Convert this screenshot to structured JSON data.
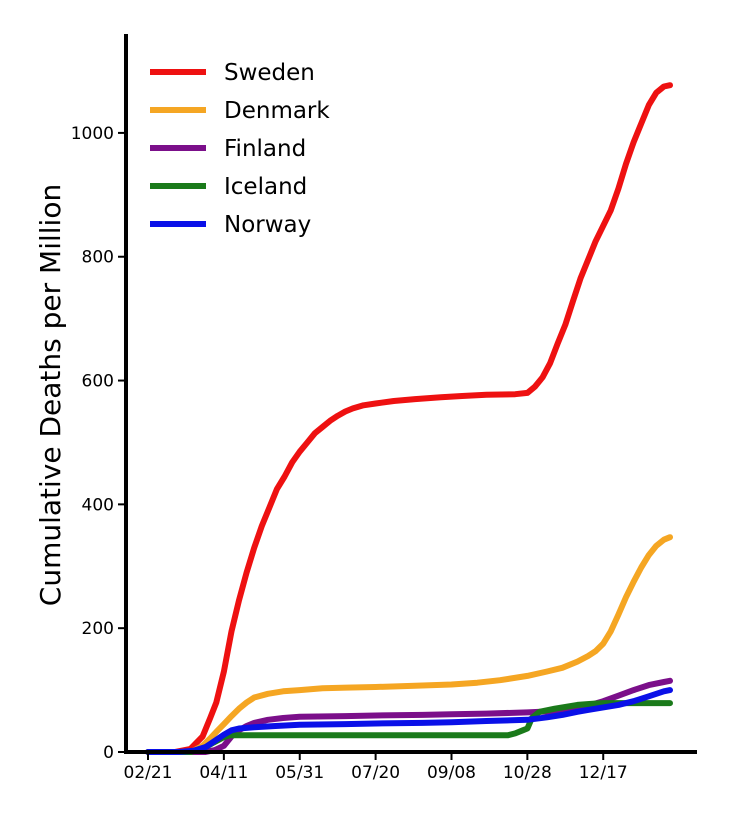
{
  "chart_data": {
    "type": "line",
    "title": "",
    "xlabel": "",
    "ylabel": "Cumulative Deaths per Million",
    "x_domain": [
      "2020-02-21",
      "2021-01-30"
    ],
    "ylim": [
      0,
      1100
    ],
    "x_ticks": [
      {
        "date": "2020-02-21",
        "label": "02/21"
      },
      {
        "date": "2020-04-11",
        "label": "04/11"
      },
      {
        "date": "2020-05-31",
        "label": "05/31"
      },
      {
        "date": "2020-07-20",
        "label": "07/20"
      },
      {
        "date": "2020-09-08",
        "label": "09/08"
      },
      {
        "date": "2020-10-28",
        "label": "10/28"
      },
      {
        "date": "2020-12-17",
        "label": "12/17"
      }
    ],
    "y_ticks": [
      0,
      200,
      400,
      600,
      800,
      1000
    ],
    "grid": false,
    "legend_position": "top-left",
    "series": [
      {
        "name": "Sweden",
        "color": "#ee1111",
        "points": [
          [
            "2020-02-21",
            0
          ],
          [
            "2020-03-10",
            0
          ],
          [
            "2020-03-20",
            5
          ],
          [
            "2020-03-28",
            25
          ],
          [
            "2020-04-02",
            55
          ],
          [
            "2020-04-06",
            80
          ],
          [
            "2020-04-11",
            130
          ],
          [
            "2020-04-16",
            195
          ],
          [
            "2020-04-21",
            245
          ],
          [
            "2020-04-26",
            290
          ],
          [
            "2020-05-01",
            330
          ],
          [
            "2020-05-06",
            365
          ],
          [
            "2020-05-11",
            395
          ],
          [
            "2020-05-16",
            425
          ],
          [
            "2020-05-21",
            445
          ],
          [
            "2020-05-26",
            468
          ],
          [
            "2020-05-31",
            485
          ],
          [
            "2020-06-05",
            500
          ],
          [
            "2020-06-10",
            515
          ],
          [
            "2020-06-15",
            525
          ],
          [
            "2020-06-20",
            535
          ],
          [
            "2020-06-25",
            543
          ],
          [
            "2020-06-30",
            550
          ],
          [
            "2020-07-05",
            555
          ],
          [
            "2020-07-12",
            560
          ],
          [
            "2020-07-20",
            563
          ],
          [
            "2020-08-01",
            567
          ],
          [
            "2020-08-15",
            570
          ],
          [
            "2020-09-01",
            573
          ],
          [
            "2020-09-15",
            575
          ],
          [
            "2020-10-01",
            577
          ],
          [
            "2020-10-20",
            578
          ],
          [
            "2020-10-28",
            580
          ],
          [
            "2020-11-02",
            590
          ],
          [
            "2020-11-07",
            605
          ],
          [
            "2020-11-12",
            628
          ],
          [
            "2020-11-17",
            660
          ],
          [
            "2020-11-22",
            690
          ],
          [
            "2020-11-27",
            728
          ],
          [
            "2020-12-02",
            765
          ],
          [
            "2020-12-07",
            795
          ],
          [
            "2020-12-12",
            825
          ],
          [
            "2020-12-17",
            850
          ],
          [
            "2020-12-22",
            875
          ],
          [
            "2020-12-27",
            910
          ],
          [
            "2021-01-01",
            950
          ],
          [
            "2021-01-06",
            985
          ],
          [
            "2021-01-11",
            1015
          ],
          [
            "2021-01-16",
            1045
          ],
          [
            "2021-01-21",
            1065
          ],
          [
            "2021-01-26",
            1075
          ],
          [
            "2021-01-30",
            1077
          ]
        ]
      },
      {
        "name": "Denmark",
        "color": "#f5a623",
        "points": [
          [
            "2020-02-21",
            0
          ],
          [
            "2020-03-14",
            0
          ],
          [
            "2020-03-22",
            2
          ],
          [
            "2020-03-28",
            10
          ],
          [
            "2020-04-02",
            22
          ],
          [
            "2020-04-07",
            35
          ],
          [
            "2020-04-11",
            45
          ],
          [
            "2020-04-16",
            58
          ],
          [
            "2020-04-21",
            70
          ],
          [
            "2020-04-26",
            80
          ],
          [
            "2020-05-01",
            88
          ],
          [
            "2020-05-10",
            94
          ],
          [
            "2020-05-20",
            98
          ],
          [
            "2020-05-31",
            100
          ],
          [
            "2020-06-15",
            103
          ],
          [
            "2020-07-01",
            104
          ],
          [
            "2020-07-20",
            105
          ],
          [
            "2020-08-15",
            107
          ],
          [
            "2020-09-08",
            109
          ],
          [
            "2020-09-25",
            112
          ],
          [
            "2020-10-10",
            116
          ],
          [
            "2020-10-28",
            123
          ],
          [
            "2020-11-10",
            130
          ],
          [
            "2020-11-20",
            136
          ],
          [
            "2020-11-30",
            146
          ],
          [
            "2020-12-07",
            155
          ],
          [
            "2020-12-12",
            163
          ],
          [
            "2020-12-17",
            175
          ],
          [
            "2020-12-22",
            195
          ],
          [
            "2020-12-27",
            222
          ],
          [
            "2021-01-01",
            250
          ],
          [
            "2021-01-06",
            275
          ],
          [
            "2021-01-11",
            298
          ],
          [
            "2021-01-16",
            318
          ],
          [
            "2021-01-21",
            333
          ],
          [
            "2021-01-26",
            343
          ],
          [
            "2021-01-30",
            347
          ]
        ]
      },
      {
        "name": "Finland",
        "color": "#7b0f8a",
        "points": [
          [
            "2020-02-21",
            0
          ],
          [
            "2020-03-30",
            0
          ],
          [
            "2020-04-05",
            3
          ],
          [
            "2020-04-11",
            10
          ],
          [
            "2020-04-16",
            25
          ],
          [
            "2020-04-21",
            35
          ],
          [
            "2020-04-26",
            42
          ],
          [
            "2020-05-01",
            47
          ],
          [
            "2020-05-10",
            52
          ],
          [
            "2020-05-20",
            55
          ],
          [
            "2020-05-31",
            57
          ],
          [
            "2020-06-30",
            58
          ],
          [
            "2020-07-20",
            59
          ],
          [
            "2020-08-20",
            60
          ],
          [
            "2020-09-08",
            61
          ],
          [
            "2020-10-01",
            62
          ],
          [
            "2020-10-28",
            64
          ],
          [
            "2020-11-15",
            66
          ],
          [
            "2020-11-30",
            70
          ],
          [
            "2020-12-07",
            75
          ],
          [
            "2020-12-17",
            82
          ],
          [
            "2020-12-27",
            91
          ],
          [
            "2021-01-06",
            100
          ],
          [
            "2021-01-16",
            108
          ],
          [
            "2021-01-26",
            113
          ],
          [
            "2021-01-30",
            115
          ]
        ]
      },
      {
        "name": "Iceland",
        "color": "#1a7a1a",
        "points": [
          [
            "2020-02-21",
            0
          ],
          [
            "2020-03-20",
            0
          ],
          [
            "2020-03-28",
            5
          ],
          [
            "2020-04-04",
            15
          ],
          [
            "2020-04-11",
            24
          ],
          [
            "2020-04-15",
            27
          ],
          [
            "2020-06-30",
            27
          ],
          [
            "2020-09-08",
            27
          ],
          [
            "2020-10-15",
            27
          ],
          [
            "2020-10-20",
            30
          ],
          [
            "2020-10-25",
            35
          ],
          [
            "2020-10-28",
            38
          ],
          [
            "2020-10-31",
            55
          ],
          [
            "2020-11-05",
            65
          ],
          [
            "2020-11-15",
            70
          ],
          [
            "2020-11-30",
            76
          ],
          [
            "2020-12-10",
            78
          ],
          [
            "2020-12-17",
            79
          ],
          [
            "2021-01-30",
            79
          ]
        ]
      },
      {
        "name": "Norway",
        "color": "#0a10e8",
        "points": [
          [
            "2020-02-21",
            0
          ],
          [
            "2020-03-12",
            0
          ],
          [
            "2020-03-22",
            2
          ],
          [
            "2020-03-30",
            8
          ],
          [
            "2020-04-05",
            18
          ],
          [
            "2020-04-11",
            28
          ],
          [
            "2020-04-16",
            35
          ],
          [
            "2020-04-21",
            38
          ],
          [
            "2020-05-01",
            40
          ],
          [
            "2020-05-15",
            42
          ],
          [
            "2020-05-31",
            44
          ],
          [
            "2020-06-30",
            45
          ],
          [
            "2020-07-20",
            46
          ],
          [
            "2020-08-20",
            47
          ],
          [
            "2020-09-08",
            48
          ],
          [
            "2020-10-01",
            50
          ],
          [
            "2020-10-28",
            52
          ],
          [
            "2020-11-10",
            56
          ],
          [
            "2020-11-20",
            60
          ],
          [
            "2020-11-30",
            65
          ],
          [
            "2020-12-07",
            68
          ],
          [
            "2020-12-17",
            72
          ],
          [
            "2020-12-27",
            76
          ],
          [
            "2021-01-06",
            82
          ],
          [
            "2021-01-16",
            90
          ],
          [
            "2021-01-26",
            98
          ],
          [
            "2021-01-30",
            100
          ]
        ]
      }
    ]
  }
}
